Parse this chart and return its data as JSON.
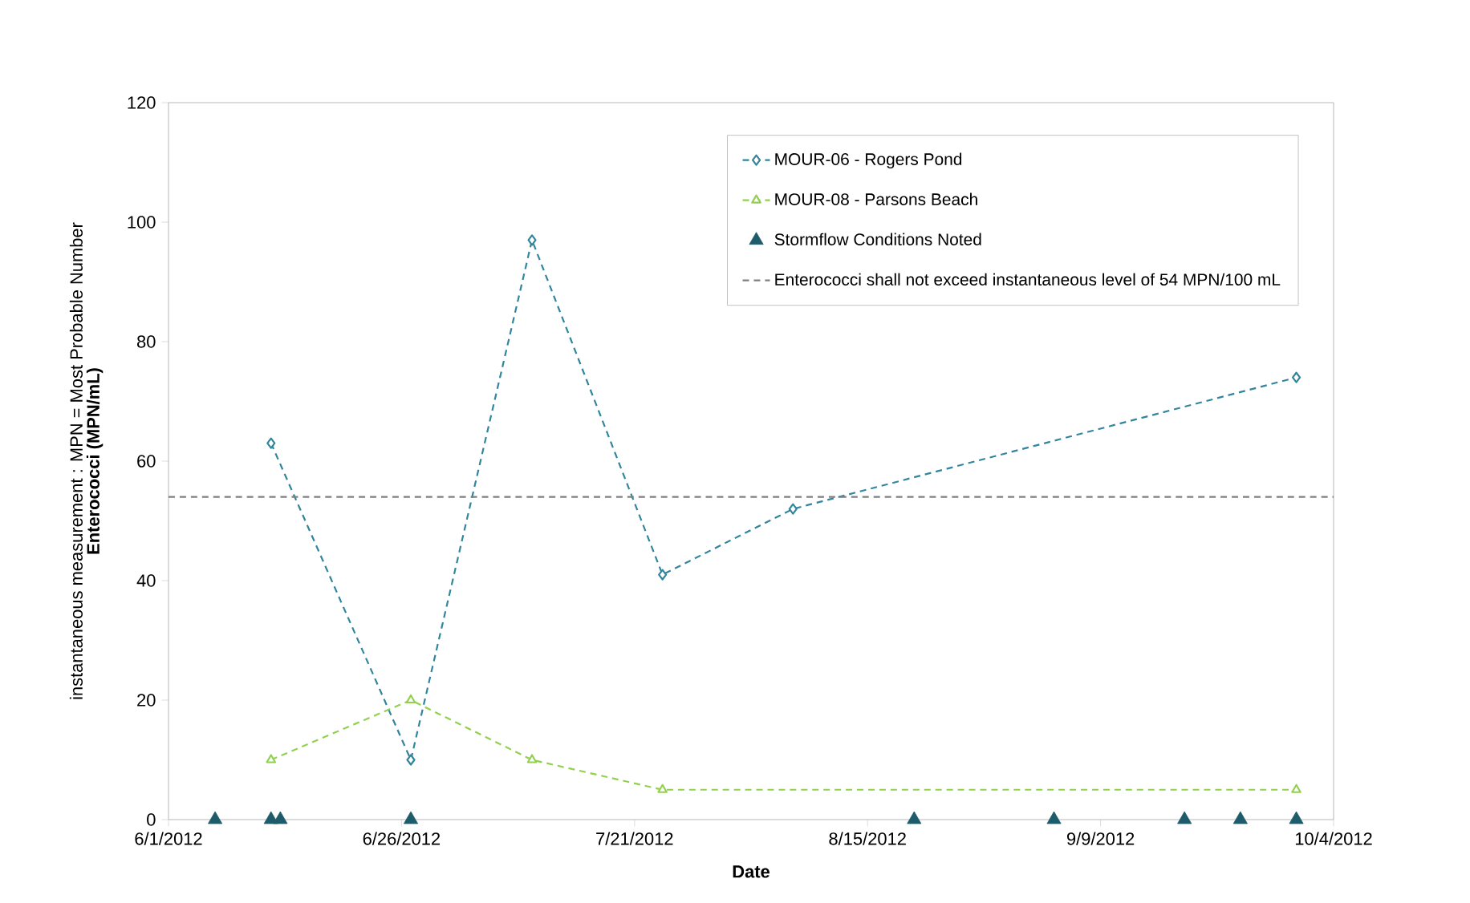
{
  "chart_data": {
    "type": "line",
    "ylabel": "Enterococci (MPN/mL)",
    "xlabel": "Date",
    "annotations": [
      "instantaneous measurement : MPN = Most Probable Number"
    ],
    "xlim": [
      "2012-06-01",
      "2012-10-04"
    ],
    "xticks": [
      {
        "value": "2012-06-01",
        "label": "6/1/2012"
      },
      {
        "value": "2012-06-26",
        "label": "6/26/2012"
      },
      {
        "value": "2012-07-21",
        "label": "7/21/2012"
      },
      {
        "value": "2012-08-15",
        "label": "8/15/2012"
      },
      {
        "value": "2012-09-09",
        "label": "9/9/2012"
      },
      {
        "value": "2012-10-04",
        "label": "10/4/2012"
      }
    ],
    "ylim": [
      0,
      120
    ],
    "yticks": [
      0,
      20,
      40,
      60,
      80,
      100,
      120
    ],
    "legend": "top right",
    "series": [
      {
        "name": "MOUR-06 - Rogers Pond",
        "color": "#31859c",
        "marker": "diamond",
        "line_style": "dashed",
        "x": [
          "2012-06-12",
          "2012-06-27",
          "2012-07-10",
          "2012-07-24",
          "2012-08-07",
          "2012-09-30"
        ],
        "values": [
          63,
          10,
          97,
          41,
          52,
          74
        ]
      },
      {
        "name": "MOUR-08 - Parsons Beach",
        "color": "#92d050",
        "marker": "triangle",
        "line_style": "dashed",
        "x": [
          "2012-06-12",
          "2012-06-27",
          "2012-07-10",
          "2012-07-24",
          "2012-09-30"
        ],
        "values": [
          10,
          20,
          10,
          5,
          5
        ]
      },
      {
        "name": "Stormflow Conditions Noted",
        "type": "scatter",
        "color": "#1f5c6b",
        "marker": "triangle",
        "x": [
          "2012-06-06",
          "2012-06-12",
          "2012-06-13",
          "2012-06-27",
          "2012-08-20",
          "2012-09-04",
          "2012-09-18",
          "2012-09-24",
          "2012-09-30"
        ],
        "values": [
          0,
          0,
          0,
          0,
          0,
          0,
          0,
          0,
          0
        ]
      }
    ],
    "ref_lines": [
      {
        "axis": "y",
        "value": 54,
        "label": "Enterococci shall not exceed instantaneous level of 54 MPN/100 mL",
        "color": "#7f7f7f",
        "line_style": "dashed"
      }
    ]
  }
}
